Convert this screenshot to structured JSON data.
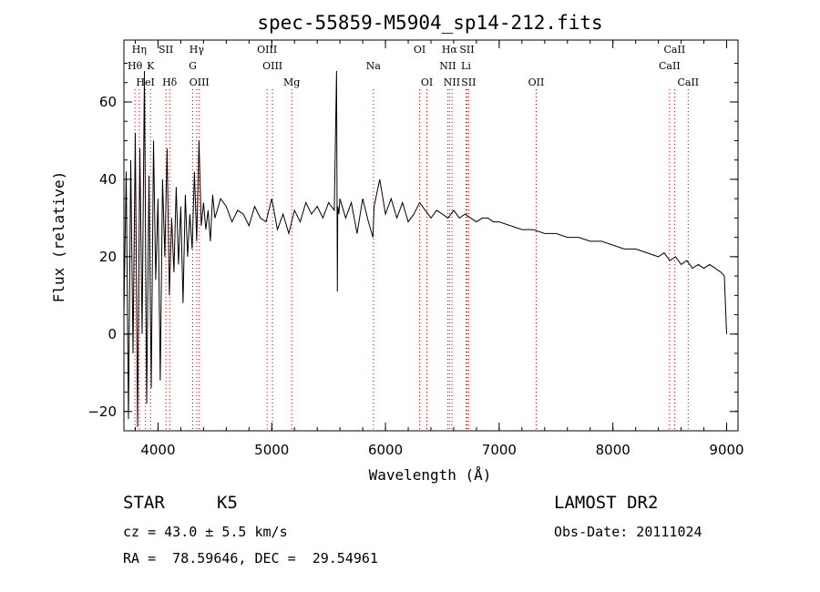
{
  "chart_data": {
    "type": "line",
    "title": "spec-55859-M5904_sp14-212.fits",
    "xlabel": "Wavelength (Å)",
    "ylabel": "Flux (relative)",
    "xlim": [
      3700,
      9100
    ],
    "ylim": [
      -25,
      76
    ],
    "xticks": [
      "4000",
      "5000",
      "6000",
      "7000",
      "8000",
      "9000"
    ],
    "yticks": [
      "−20",
      "0",
      "20",
      "40",
      "60"
    ],
    "grid": false,
    "line_color": "#000000",
    "marker_color": "#cc0000",
    "series": [
      {
        "x": [
          3700,
          3720,
          3740,
          3760,
          3780,
          3800,
          3820,
          3840,
          3860,
          3880,
          3900,
          3920,
          3940,
          3960,
          3980,
          4000,
          4020,
          4040,
          4060,
          4080,
          4100,
          4120,
          4140,
          4160,
          4180,
          4200,
          4220,
          4240,
          4260,
          4280,
          4300,
          4320,
          4340,
          4360,
          4380,
          4400,
          4420,
          4440,
          4460,
          4480,
          4500,
          4550,
          4600,
          4650,
          4700,
          4750,
          4800,
          4850,
          4900,
          4950,
          5000,
          5050,
          5100,
          5150,
          5200,
          5250,
          5300,
          5350,
          5400,
          5450,
          5500,
          5550,
          5570,
          5577,
          5580,
          5590,
          5600,
          5650,
          5700,
          5750,
          5800,
          5850,
          5890,
          5900,
          5950,
          6000,
          6050,
          6100,
          6150,
          6200,
          6250,
          6300,
          6350,
          6400,
          6450,
          6500,
          6550,
          6600,
          6650,
          6700,
          6750,
          6800,
          6850,
          6900,
          6950,
          7000,
          7100,
          7200,
          7300,
          7400,
          7500,
          7600,
          7700,
          7800,
          7900,
          8000,
          8100,
          8200,
          8300,
          8400,
          8450,
          8500,
          8550,
          8600,
          8650,
          8700,
          8750,
          8800,
          8850,
          8900,
          8950,
          8980,
          9000
        ],
        "y": [
          5,
          42,
          -22,
          45,
          -5,
          52,
          -24,
          48,
          0,
          68,
          -18,
          41,
          -14,
          50,
          14,
          35,
          -12,
          40,
          20,
          48,
          10,
          30,
          16,
          38,
          18,
          33,
          8,
          36,
          20,
          31,
          22,
          42,
          24,
          50,
          28,
          34,
          27,
          32,
          24,
          36,
          30,
          35,
          33,
          29,
          32,
          31,
          28,
          33,
          30,
          29,
          35,
          27,
          31,
          26,
          32,
          29,
          34,
          31,
          33,
          30,
          34,
          32,
          68,
          11,
          33,
          31,
          35,
          30,
          34,
          26,
          35,
          29,
          25,
          33,
          40,
          31,
          35,
          30,
          34,
          29,
          31,
          34,
          32,
          30,
          32,
          31,
          30,
          32,
          30,
          31,
          30,
          29,
          30,
          30,
          29,
          29,
          28,
          27,
          27,
          26,
          26,
          25,
          25,
          24,
          24,
          23,
          22,
          22,
          21,
          20,
          21,
          19,
          20,
          18,
          19,
          17,
          18,
          17,
          18,
          17,
          16,
          15,
          0
        ]
      }
    ],
    "line_markers": [
      {
        "label": "Hη",
        "x": 3835
      },
      {
        "label": "Hθ",
        "x": 3797
      },
      {
        "label": "K",
        "x": 3934
      },
      {
        "label": "HeI",
        "x": 3889
      },
      {
        "label": "SII",
        "x": 4069
      },
      {
        "label": "Hδ",
        "x": 4102
      },
      {
        "label": "Hγ",
        "x": 4340
      },
      {
        "label": "G",
        "x": 4305
      },
      {
        "label": "OIII",
        "x": 4363
      },
      {
        "label": "OIII",
        "x": 4959
      },
      {
        "label": "OIII",
        "x": 5007
      },
      {
        "label": "Mg",
        "x": 5175
      },
      {
        "label": "Na",
        "x": 5894
      },
      {
        "label": "OI",
        "x": 6300
      },
      {
        "label": "OI",
        "x": 6364
      },
      {
        "label": "Hα",
        "x": 6563
      },
      {
        "label": "SII",
        "x": 6716
      },
      {
        "label": "NII",
        "x": 6548
      },
      {
        "label": "Li",
        "x": 6708
      },
      {
        "label": "NII",
        "x": 6584
      },
      {
        "label": "SII",
        "x": 6731
      },
      {
        "label": "OII",
        "x": 7325
      },
      {
        "label": "CaII",
        "x": 8542
      },
      {
        "label": "CaII",
        "x": 8498
      },
      {
        "label": "CaII",
        "x": 8662
      }
    ]
  },
  "info": {
    "class": "STAR",
    "subclass": "K5",
    "survey": "LAMOST DR2",
    "cz": "cz = 43.0 ± 5.5 km/s",
    "obsdate": "Obs-Date: 20111024",
    "radec": "RA =  78.59646, DEC =  29.54961"
  }
}
